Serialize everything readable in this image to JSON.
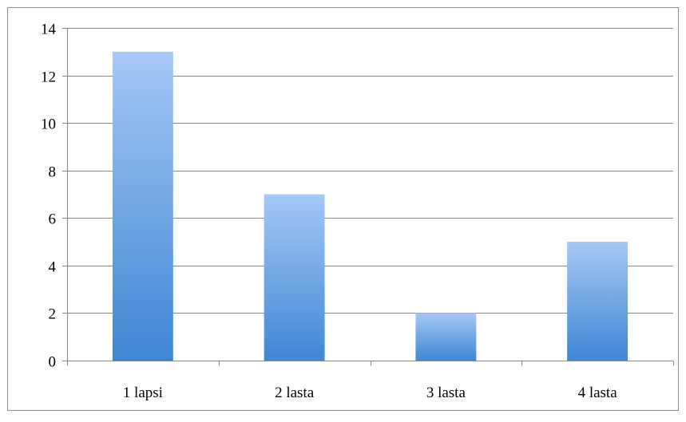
{
  "chart_data": {
    "type": "bar",
    "categories": [
      "1 lapsi",
      "2 lasta",
      "3 lasta",
      "4 lasta"
    ],
    "values": [
      13,
      7,
      2,
      5
    ],
    "title": "",
    "xlabel": "",
    "ylabel": "",
    "ylim": [
      0,
      14
    ],
    "yticks": [
      "0",
      "2",
      "4",
      "6",
      "8",
      "10",
      "12",
      "14"
    ],
    "grid": true,
    "legend": "none",
    "colors": {
      "bar_top": "#a6c8f6",
      "bar_bottom": "#3e87d3",
      "grid": "#868686",
      "axis": "#868686",
      "frame": "#8c8c8c"
    }
  }
}
